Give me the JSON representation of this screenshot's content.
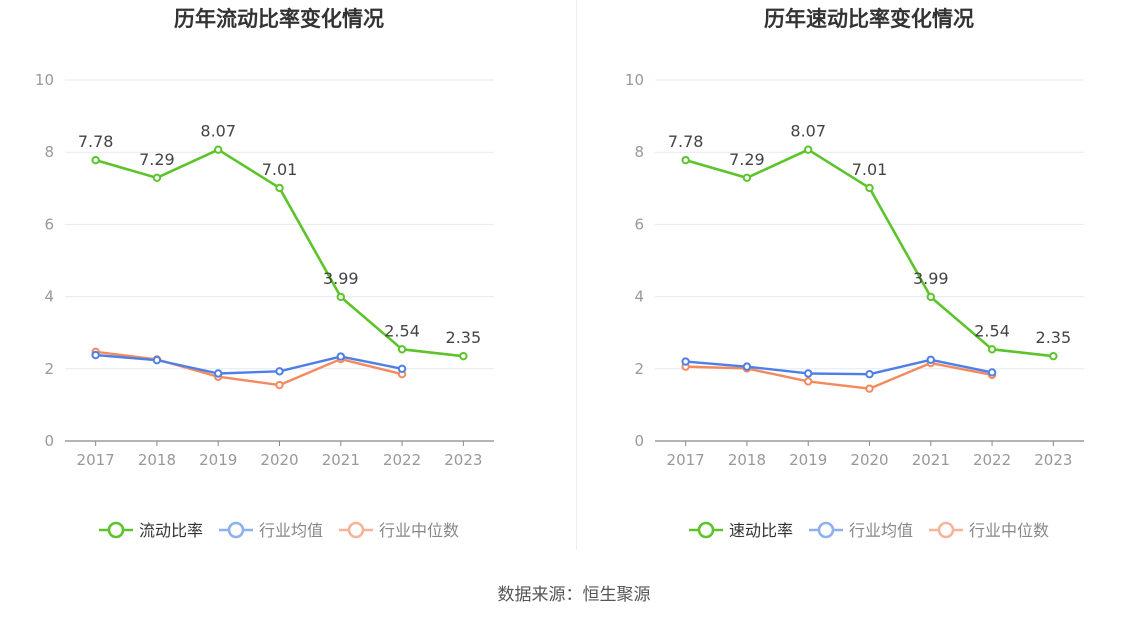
{
  "colors": {
    "main": "#5cc42a",
    "avg": "#4e7fe6",
    "median": "#f5895e",
    "avg_legend": "#8fb0f0",
    "median_legend": "#f7b49a",
    "grid": "#e6e9f2",
    "axis": "#888888",
    "tick_text": "#999999",
    "label_text": "#444444"
  },
  "source_text": "数据来源：恒生聚源",
  "chart_data": [
    {
      "type": "line",
      "title": "历年流动比率变化情况",
      "categories": [
        "2017",
        "2018",
        "2019",
        "2020",
        "2021",
        "2022",
        "2023"
      ],
      "ylim": [
        0,
        10
      ],
      "yticks": [
        "0",
        "2",
        "4",
        "6",
        "8",
        "10"
      ],
      "grid": true,
      "legend": "bottom",
      "series": [
        {
          "name": "流动比率",
          "values": [
            7.78,
            7.29,
            8.07,
            7.01,
            3.99,
            2.54,
            2.35
          ],
          "labels": [
            "7.78",
            "7.29",
            "8.07",
            "7.01",
            "3.99",
            "2.54",
            "2.35"
          ]
        },
        {
          "name": "行业均值",
          "values": [
            2.38,
            2.24,
            1.87,
            1.93,
            2.34,
            2.0,
            null
          ]
        },
        {
          "name": "行业中位数",
          "values": [
            2.47,
            2.26,
            1.78,
            1.55,
            2.27,
            1.85,
            null
          ]
        }
      ]
    },
    {
      "type": "line",
      "title": "历年速动比率变化情况",
      "categories": [
        "2017",
        "2018",
        "2019",
        "2020",
        "2021",
        "2022",
        "2023"
      ],
      "ylim": [
        0,
        10
      ],
      "yticks": [
        "0",
        "2",
        "4",
        "6",
        "8",
        "10"
      ],
      "grid": true,
      "legend": "bottom",
      "series": [
        {
          "name": "速动比率",
          "values": [
            7.78,
            7.29,
            8.07,
            7.01,
            3.99,
            2.54,
            2.35
          ],
          "labels": [
            "7.78",
            "7.29",
            "8.07",
            "7.01",
            "3.99",
            "2.54",
            "2.35"
          ]
        },
        {
          "name": "行业均值",
          "values": [
            2.2,
            2.06,
            1.87,
            1.85,
            2.25,
            1.9,
            null
          ]
        },
        {
          "name": "行业中位数",
          "values": [
            2.06,
            2.01,
            1.65,
            1.45,
            2.16,
            1.83,
            null
          ]
        }
      ]
    }
  ]
}
